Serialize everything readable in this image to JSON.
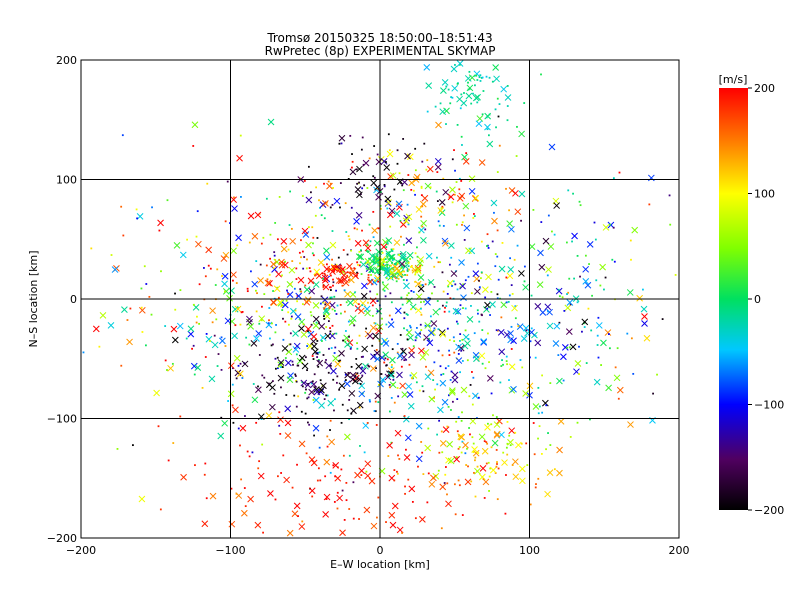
{
  "chart_data": {
    "type": "scatter",
    "title": "Tromsø 20150325 18:50:00–18:51:43",
    "subtitle": "RwPretec (8p) EXPERIMENTAL SKYMAP",
    "xlabel": "E–W location [km]",
    "ylabel": "N–S location [km]",
    "xlim": [
      -200,
      200
    ],
    "ylim": [
      -200,
      200
    ],
    "xticks": [
      -200,
      -100,
      0,
      100,
      200
    ],
    "yticks": [
      -200,
      -100,
      0,
      100,
      200
    ],
    "grid": true,
    "colorbar": {
      "label": "[m/s]",
      "range": [
        -200,
        200
      ],
      "ticks": [
        200,
        100,
        0,
        -100,
        -200
      ]
    },
    "markers": [
      "dot",
      "x"
    ],
    "clusters": [
      {
        "x": 0,
        "y": -20,
        "sx": 60,
        "sy": 55,
        "n": 700,
        "v": 0,
        "sv": 110
      },
      {
        "x": 5,
        "y": 30,
        "sx": 8,
        "sy": 8,
        "n": 120,
        "v": 5,
        "sv": 20
      },
      {
        "x": -30,
        "y": 20,
        "sx": 10,
        "sy": 5,
        "n": 60,
        "v": 190,
        "sv": 15
      },
      {
        "x": 15,
        "y": 25,
        "sx": 10,
        "sy": 5,
        "n": 40,
        "v": 100,
        "sv": 30
      },
      {
        "x": 62,
        "y": 165,
        "sx": 15,
        "sy": 15,
        "n": 80,
        "v": -20,
        "sv": 20
      },
      {
        "x": 30,
        "y": 85,
        "sx": 30,
        "sy": 18,
        "n": 90,
        "v": 140,
        "sv": 60
      },
      {
        "x": 0,
        "y": 105,
        "sx": 25,
        "sy": 15,
        "n": 60,
        "v": -180,
        "sv": 30
      },
      {
        "x": 70,
        "y": -130,
        "sx": 25,
        "sy": 20,
        "n": 120,
        "v": 120,
        "sv": 50
      },
      {
        "x": -30,
        "y": -160,
        "sx": 50,
        "sy": 30,
        "n": 150,
        "v": 190,
        "sv": 20
      },
      {
        "x": -40,
        "y": -60,
        "sx": 25,
        "sy": 25,
        "n": 140,
        "v": -180,
        "sv": 30
      },
      {
        "x": 60,
        "y": -20,
        "sx": 40,
        "sy": 40,
        "n": 150,
        "v": -70,
        "sv": 60
      },
      {
        "x": -130,
        "y": 0,
        "sx": 40,
        "sy": 50,
        "n": 100,
        "v": 60,
        "sv": 120
      },
      {
        "x": 140,
        "y": 0,
        "sx": 40,
        "sy": 60,
        "n": 110,
        "v": -20,
        "sv": 120
      },
      {
        "x": -60,
        "y": 20,
        "sx": 30,
        "sy": 30,
        "n": 120,
        "v": 150,
        "sv": 70
      }
    ]
  }
}
